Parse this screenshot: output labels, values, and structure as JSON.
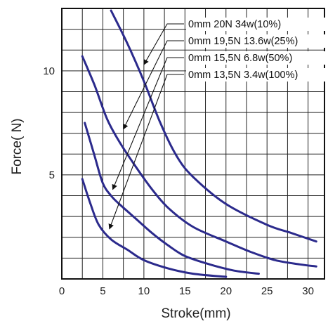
{
  "chart_data": {
    "type": "line",
    "title": "",
    "xlabel": "Stroke(mm)",
    "ylabel": "Force( N)",
    "xlim": [
      0,
      32
    ],
    "ylim": [
      0,
      13
    ],
    "grid": true,
    "legend_placement": "top-right",
    "x_ticks": [
      {
        "value": 0,
        "label": "0"
      },
      {
        "value": 5,
        "label": "5"
      },
      {
        "value": 10,
        "label": "10"
      },
      {
        "value": 15,
        "label": "15"
      },
      {
        "value": 20,
        "label": "20"
      },
      {
        "value": 25,
        "label": "25"
      },
      {
        "value": 30,
        "label": "30"
      }
    ],
    "y_ticks": [
      {
        "value": 5,
        "label": "5"
      },
      {
        "value": 10,
        "label": "10"
      }
    ],
    "line_color": "#2b2a8c",
    "series": [
      {
        "name": "0mm 20N 34w(10%)",
        "points": [
          [
            6,
            12.9
          ],
          [
            8,
            11.3
          ],
          [
            10,
            9.5
          ],
          [
            12,
            7.5
          ],
          [
            14,
            5.9
          ],
          [
            16,
            4.9
          ],
          [
            20,
            3.6
          ],
          [
            25,
            2.6
          ],
          [
            28,
            2.2
          ],
          [
            31,
            1.8
          ]
        ],
        "annotation_at": [
          10,
          10.3
        ]
      },
      {
        "name": "0mm 19,5N 13.6w(25%)",
        "points": [
          [
            2.5,
            10.7
          ],
          [
            4,
            9.3
          ],
          [
            5.5,
            7.7
          ],
          [
            7,
            6.6
          ],
          [
            9,
            5.4
          ],
          [
            11,
            4.3
          ],
          [
            13,
            3.4
          ],
          [
            16,
            2.5
          ],
          [
            20,
            1.8
          ],
          [
            23,
            1.3
          ],
          [
            26,
            0.9
          ],
          [
            29,
            0.7
          ],
          [
            31,
            0.6
          ]
        ],
        "annotation_at": [
          7.5,
          7.2
        ]
      },
      {
        "name": "0mm 15,5N 6.8w(50%)",
        "points": [
          [
            2.8,
            7.5
          ],
          [
            4,
            5.9
          ],
          [
            5,
            4.6
          ],
          [
            6,
            4.0
          ],
          [
            7,
            3.6
          ],
          [
            9,
            2.9
          ],
          [
            11,
            2.2
          ],
          [
            13,
            1.6
          ],
          [
            15,
            1.1
          ],
          [
            18,
            0.7
          ],
          [
            21,
            0.4
          ],
          [
            24,
            0.25
          ]
        ],
        "annotation_at": [
          6.2,
          4.3
        ]
      },
      {
        "name": "0mm 13,5N 3.4w(100%)",
        "points": [
          [
            2.5,
            4.8
          ],
          [
            3.5,
            3.6
          ],
          [
            4.5,
            2.6
          ],
          [
            6,
            1.9
          ],
          [
            8,
            1.4
          ],
          [
            10,
            0.9
          ],
          [
            13,
            0.5
          ],
          [
            16,
            0.25
          ],
          [
            20,
            0.1
          ]
        ],
        "annotation_at": [
          5.8,
          2.4
        ]
      }
    ]
  }
}
